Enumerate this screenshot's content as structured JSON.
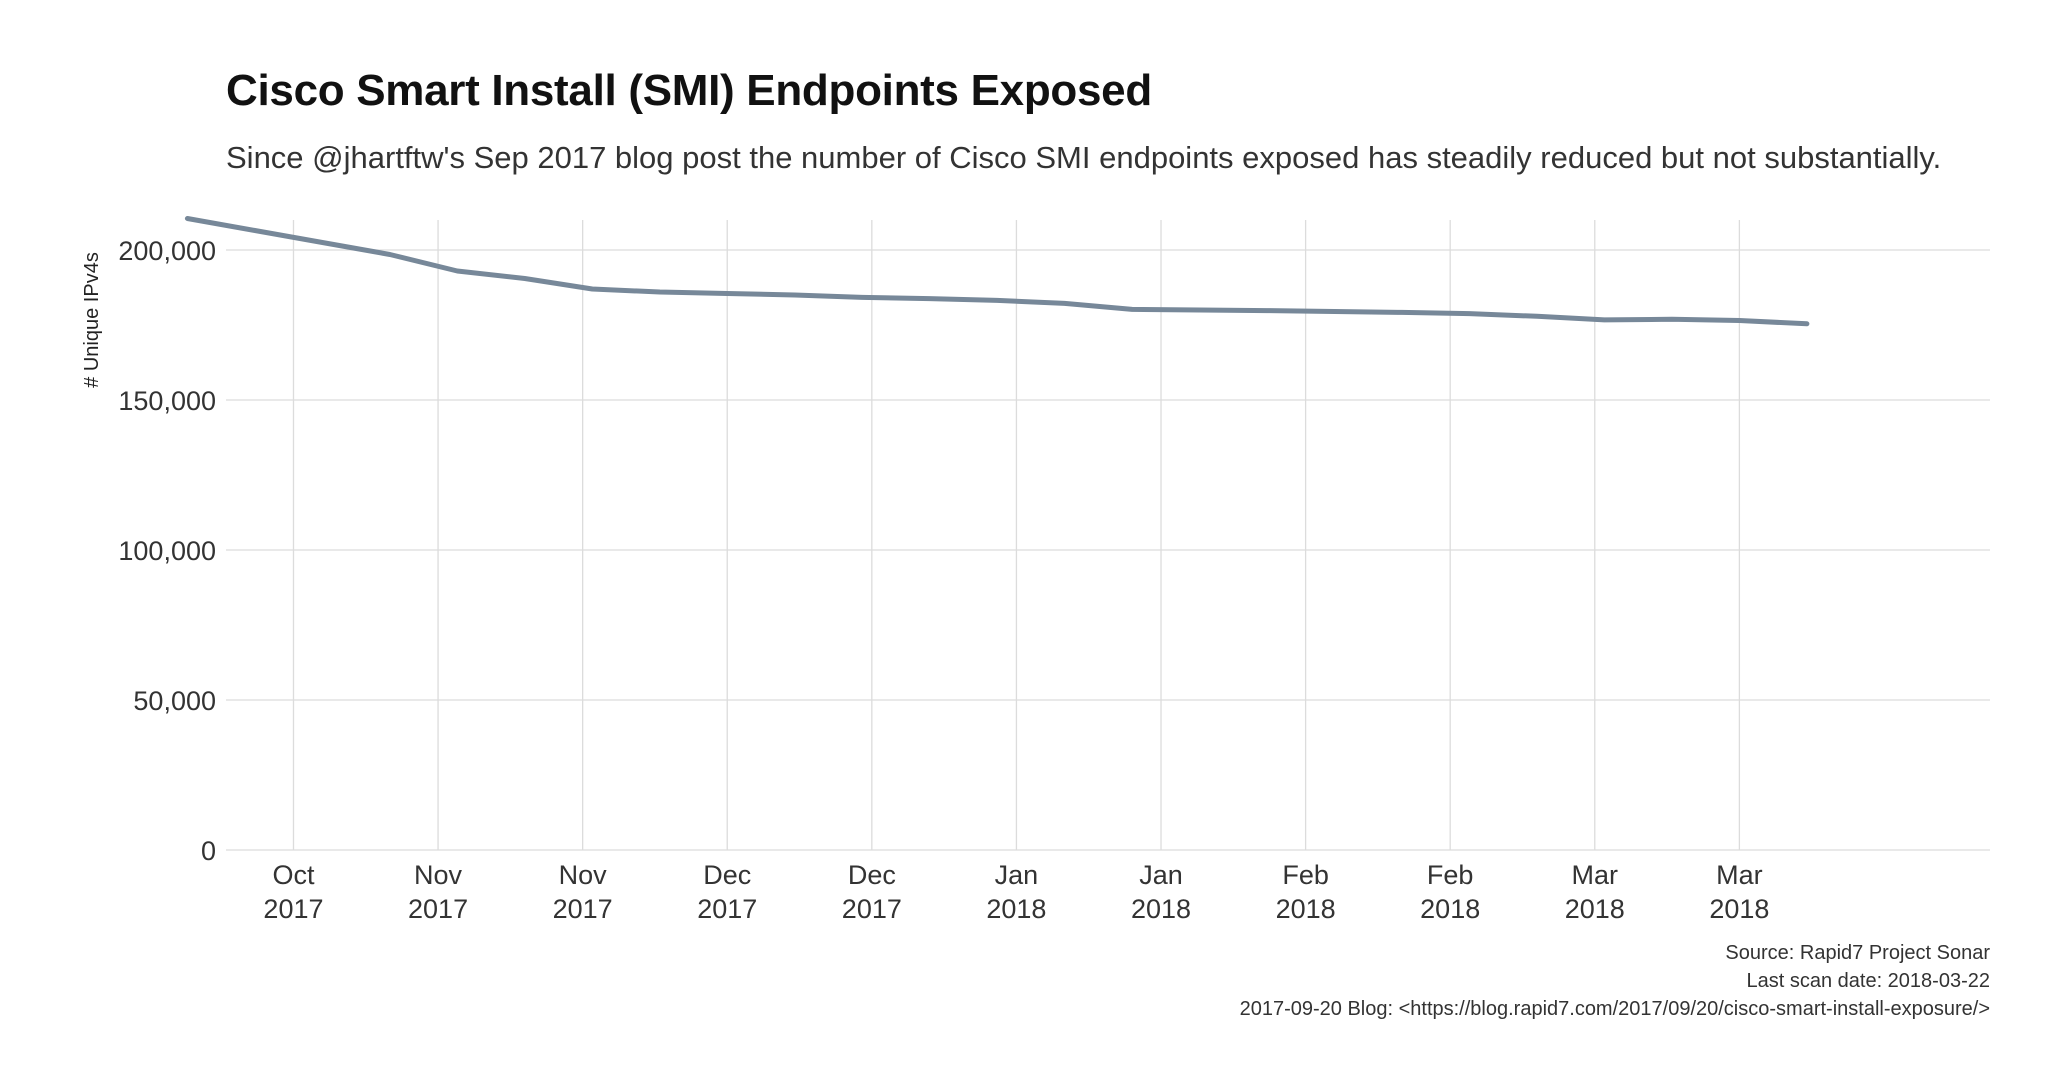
{
  "chart_data": {
    "type": "line",
    "title": "Cisco Smart Install (SMI) Endpoints Exposed",
    "subtitle": "Since @jhartftw's Sep 2017 blog post the number of Cisco SMI endpoints exposed has steadily reduced but not substantially.",
    "xlabel": "",
    "ylabel": "# Unique IPv4s",
    "ylim": [
      0,
      210000
    ],
    "y_ticks": [
      0,
      50000,
      100000,
      150000,
      200000
    ],
    "y_tick_labels": [
      "0",
      "50,000",
      "100,000",
      "150,000",
      "200,000"
    ],
    "x_domain": [
      "2017-09-24",
      "2018-03-26"
    ],
    "x_ticks": [
      {
        "date": "2017-10-01",
        "month": "Oct",
        "year": "2017"
      },
      {
        "date": "2017-10-16",
        "month": "Nov",
        "year": "2017"
      },
      {
        "date": "2017-10-31",
        "month": "Nov",
        "year": "2017"
      },
      {
        "date": "2017-11-15",
        "month": "Dec",
        "year": "2017"
      },
      {
        "date": "2017-11-30",
        "month": "Dec",
        "year": "2017"
      },
      {
        "date": "2017-12-15",
        "month": "Jan",
        "year": "2018"
      },
      {
        "date": "2017-12-30",
        "month": "Jan",
        "year": "2018"
      },
      {
        "date": "2018-01-14",
        "month": "Feb",
        "year": "2018"
      },
      {
        "date": "2018-01-29",
        "month": "Feb",
        "year": "2018"
      },
      {
        "date": "2018-02-13",
        "month": "Mar",
        "year": "2018"
      },
      {
        "date": "2018-02-28",
        "month": "Mar",
        "year": "2018"
      }
    ],
    "grid": true,
    "series": [
      {
        "name": "Cisco SMI endpoints",
        "color": "#778899",
        "points": [
          {
            "x": "2017-09-20",
            "y": 210500
          },
          {
            "x": "2017-09-27",
            "y": 206500
          },
          {
            "x": "2017-10-04",
            "y": 202500
          },
          {
            "x": "2017-10-11",
            "y": 198500
          },
          {
            "x": "2017-10-18",
            "y": 193000
          },
          {
            "x": "2017-10-25",
            "y": 190500
          },
          {
            "x": "2017-11-01",
            "y": 187000
          },
          {
            "x": "2017-11-08",
            "y": 186000
          },
          {
            "x": "2017-11-15",
            "y": 185500
          },
          {
            "x": "2017-11-22",
            "y": 185000
          },
          {
            "x": "2017-11-29",
            "y": 184200
          },
          {
            "x": "2017-12-06",
            "y": 183800
          },
          {
            "x": "2017-12-13",
            "y": 183200
          },
          {
            "x": "2017-12-20",
            "y": 182200
          },
          {
            "x": "2017-12-27",
            "y": 180200
          },
          {
            "x": "2018-01-03",
            "y": 180000
          },
          {
            "x": "2018-01-10",
            "y": 179800
          },
          {
            "x": "2018-01-17",
            "y": 179500
          },
          {
            "x": "2018-01-24",
            "y": 179200
          },
          {
            "x": "2018-01-31",
            "y": 178800
          },
          {
            "x": "2018-02-07",
            "y": 177900
          },
          {
            "x": "2018-02-14",
            "y": 176700
          },
          {
            "x": "2018-02-21",
            "y": 176900
          },
          {
            "x": "2018-02-28",
            "y": 176500
          },
          {
            "x": "2018-03-07",
            "y": 175400
          }
        ]
      }
    ],
    "caption": [
      "Source: Rapid7 Project Sonar",
      "Last scan date: 2018-03-22",
      "2017-09-20 Blog: <https://blog.rapid7.com/2017/09/20/cisco-smart-install-exposure/>"
    ]
  },
  "colors": {
    "line": "#778899",
    "grid": "#dcdcdc",
    "text": "#333333"
  }
}
